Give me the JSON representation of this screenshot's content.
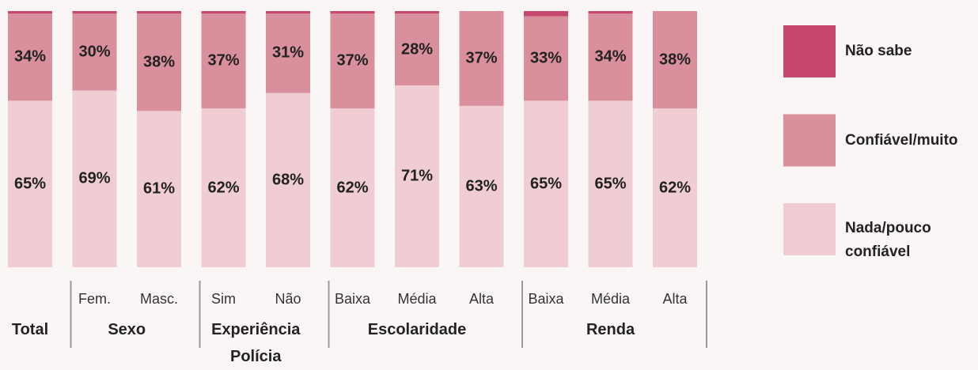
{
  "chart_data": {
    "type": "stacked_bar",
    "groups": [
      {
        "name": "Total",
        "categories": [
          null
        ]
      },
      {
        "name": "Sexo",
        "categories": [
          "Fem.",
          "Masc."
        ]
      },
      {
        "name": "Experiência Polícia",
        "categories": [
          "Sim",
          "Não"
        ]
      },
      {
        "name": "Escolaridade",
        "categories": [
          "Baixa",
          "Média",
          "Alta"
        ]
      },
      {
        "name": "Renda",
        "categories": [
          "Baixa",
          "Média",
          "Alta"
        ]
      }
    ],
    "series": [
      {
        "name": "Nada/pouco confiável",
        "color": "#f0cdd3",
        "values": [
          65,
          69,
          61,
          62,
          68,
          62,
          71,
          63,
          65,
          65,
          62
        ],
        "value_labels": [
          "65%",
          "69%",
          "61%",
          "62%",
          "68%",
          "62%",
          "71%",
          "63%",
          "65%",
          "65%",
          "62%"
        ]
      },
      {
        "name": "Confiável/muito",
        "color": "#d9909c",
        "values": [
          34,
          30,
          38,
          37,
          31,
          37,
          28,
          37,
          33,
          34,
          38
        ],
        "value_labels": [
          "34%",
          "30%",
          "38%",
          "37%",
          "31%",
          "37%",
          "28%",
          "37%",
          "33%",
          "34%",
          "38%"
        ]
      },
      {
        "name": "Não sabe",
        "color": "#c7486e",
        "values": [
          1,
          1,
          1,
          1,
          1,
          1,
          1,
          0,
          2,
          1,
          0
        ]
      }
    ],
    "ylim": [
      0,
      100
    ]
  }
}
